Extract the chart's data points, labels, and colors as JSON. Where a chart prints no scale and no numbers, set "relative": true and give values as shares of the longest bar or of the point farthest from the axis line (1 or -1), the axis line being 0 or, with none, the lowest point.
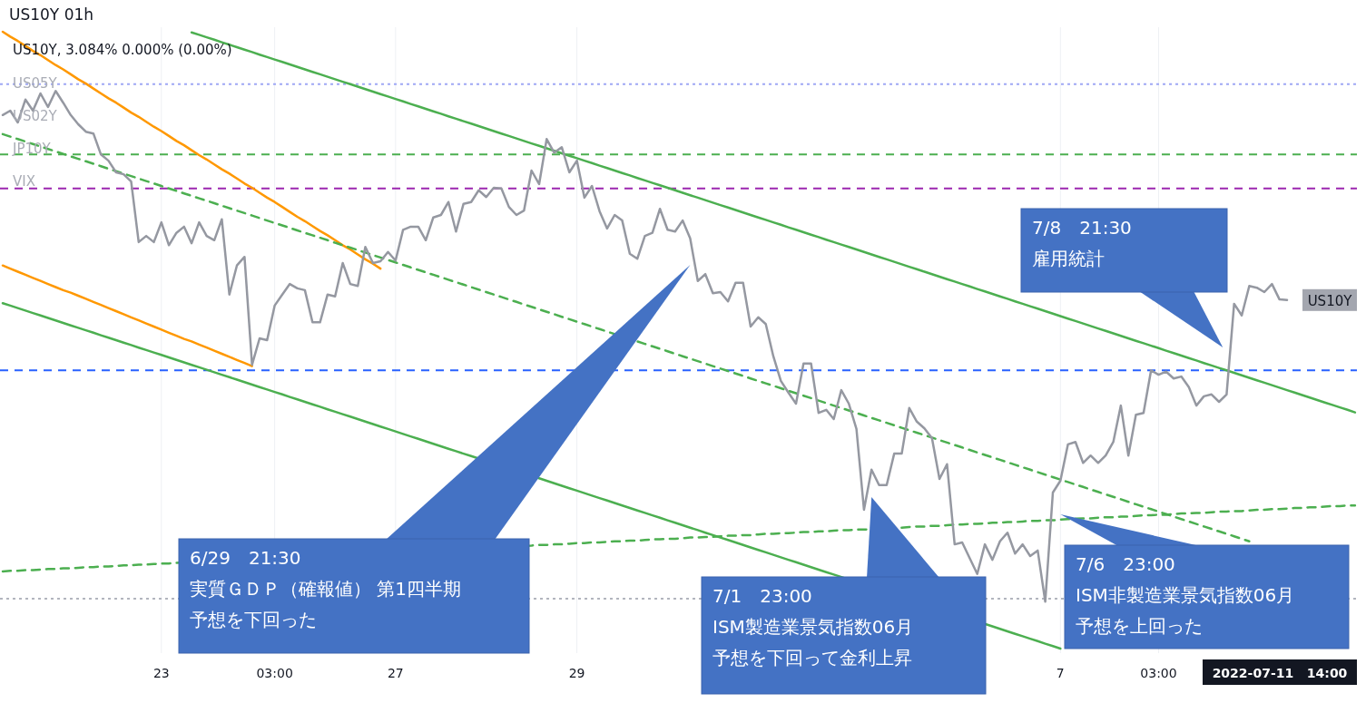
{
  "chart_data": {
    "type": "line",
    "title": "US10Y 01h",
    "subtitle": "US10Y, 3.084% 0.000% (0.00%)",
    "relative": true,
    "grid": "x",
    "categories": [
      null,
      null,
      null,
      null,
      null,
      null,
      null,
      null,
      null,
      null,
      null,
      null,
      null,
      null,
      null,
      null,
      null,
      null,
      null,
      null,
      null,
      "23",
      null,
      null,
      null,
      null,
      null,
      null,
      null,
      null,
      null,
      null,
      null,
      null,
      null,
      null,
      "03:00",
      null,
      null,
      null,
      null,
      null,
      null,
      null,
      null,
      null,
      null,
      null,
      null,
      null,
      null,
      null,
      "27",
      null,
      null,
      null,
      null,
      null,
      null,
      null,
      null,
      null,
      null,
      null,
      null,
      null,
      null,
      null,
      null,
      null,
      null,
      null,
      null,
      null,
      null,
      null,
      "29",
      null,
      null,
      null,
      null,
      null,
      null,
      null,
      null,
      null,
      null,
      null,
      null,
      null,
      null,
      null,
      null,
      null,
      null,
      null,
      null,
      null,
      null,
      null,
      null,
      null,
      null,
      null,
      null,
      null,
      null,
      null,
      null,
      null,
      null,
      null,
      null,
      null,
      null,
      null,
      null,
      null,
      null,
      null,
      null,
      null,
      null,
      null,
      null,
      null,
      null,
      null,
      null,
      null,
      null,
      null,
      null,
      null,
      null,
      null,
      null,
      null,
      null,
      null,
      "7",
      null,
      null,
      null,
      null,
      null,
      null,
      null,
      null,
      null,
      null,
      null,
      null,
      "03:00",
      null,
      null,
      null,
      null,
      null,
      null,
      null,
      null,
      null,
      null,
      null,
      null,
      null,
      null,
      null,
      null,
      null,
      null,
      null,
      null,
      null,
      null,
      null,
      null,
      null,
      null
    ],
    "ref_lines": [
      {
        "axis": "y",
        "value": 0.915,
        "color": "#9fa8f5",
        "line_style": "dotted"
      },
      {
        "axis": "y",
        "value": 0.801,
        "color": "#4caf50",
        "line_style": "dashed"
      },
      {
        "axis": "y",
        "value": 0.746,
        "color": "#9c27b0",
        "line_style": "dashed"
      },
      {
        "axis": "y",
        "value": 0.451,
        "color": "#2962ff",
        "line_style": "dashed"
      },
      {
        "axis": "y",
        "value": 0.081,
        "color": "#b2b5be",
        "line_style": "dotted"
      }
    ],
    "annotations": [
      "US05Y",
      "US02Y",
      "JP10Y",
      "VIX",
      "6/29　21:30",
      "実質ＧＤＰ（確報値） 第1四半期予想を下回った",
      "7/1　23:00",
      "ISM製造業景気指数06月予想を下回って金利上昇",
      "7/6　23:00",
      "ISM非製造業景気指数06月予想を上回った",
      "7/8　21:30",
      "雇用統計",
      "2022-07-11   14:00"
    ],
    "series": [
      {
        "color": "#ff9800",
        "line_style": "solid",
        "values": [
          1.0,
          0.992,
          0.985,
          0.977,
          0.969,
          0.962,
          0.954,
          0.946,
          0.939,
          0.931,
          0.923,
          0.916,
          0.908,
          0.9,
          0.892,
          0.885,
          0.877,
          0.869,
          0.862,
          0.854,
          0.846,
          0.839,
          0.831,
          0.823,
          0.816,
          0.808,
          0.8,
          0.793,
          0.785,
          0.777,
          0.77,
          0.762,
          0.754,
          0.747,
          0.739,
          0.731,
          0.724,
          0.716,
          0.708,
          0.7,
          0.693,
          0.685,
          0.677,
          0.67,
          0.662,
          0.654,
          0.647,
          0.639,
          0.631,
          0.624,
          0.616,
          null,
          null,
          null,
          null,
          null,
          null,
          null,
          null,
          null,
          null,
          null,
          null,
          null,
          null,
          null,
          null,
          null,
          null,
          null,
          null,
          null,
          null,
          null,
          null,
          null,
          null,
          null,
          null,
          null,
          null,
          null,
          null,
          null,
          null,
          null,
          null,
          null,
          null,
          null,
          null,
          null,
          null,
          null,
          null,
          null,
          null,
          null,
          null,
          null,
          null,
          null,
          null,
          null,
          null,
          null,
          null,
          null,
          null,
          null,
          null,
          null,
          null,
          null,
          null,
          null,
          null,
          null,
          null,
          null,
          null,
          null,
          null,
          null,
          null,
          null,
          null,
          null,
          null,
          null,
          null,
          null,
          null,
          null,
          null,
          null,
          null,
          null,
          null,
          null,
          null,
          null,
          null,
          null,
          null,
          null,
          null,
          null,
          null,
          null,
          null,
          null,
          null,
          null,
          null,
          null,
          null,
          null,
          null,
          null,
          null,
          null,
          null,
          null,
          null,
          null,
          null,
          null,
          null,
          null,
          null,
          null,
          null,
          null,
          null,
          null,
          null,
          null,
          null,
          null
        ]
      },
      {
        "color": "#ff9800",
        "line_style": "solid",
        "values": [
          0.621,
          0.616,
          0.611,
          0.606,
          0.601,
          0.596,
          0.591,
          0.586,
          0.581,
          0.577,
          0.572,
          0.567,
          0.562,
          0.557,
          0.552,
          0.547,
          0.542,
          0.537,
          0.532,
          0.527,
          0.522,
          0.517,
          0.512,
          0.507,
          0.502,
          0.498,
          0.493,
          0.488,
          0.483,
          0.478,
          0.473,
          0.468,
          0.463,
          0.458,
          null,
          null,
          null,
          null,
          null,
          null,
          null,
          null,
          null,
          null,
          null,
          null,
          null,
          null,
          null,
          null,
          null,
          null,
          null,
          null,
          null,
          null,
          null,
          null,
          null,
          null,
          null,
          null,
          null,
          null,
          null,
          null,
          null,
          null,
          null,
          null,
          null,
          null,
          null,
          null,
          null,
          null,
          null,
          null,
          null,
          null,
          null,
          null,
          null,
          null,
          null,
          null,
          null,
          null,
          null,
          null,
          null,
          null,
          null,
          null,
          null,
          null,
          null,
          null,
          null,
          null,
          null,
          null,
          null,
          null,
          null,
          null,
          null,
          null,
          null,
          null,
          null,
          null,
          null,
          null,
          null,
          null,
          null,
          null,
          null,
          null,
          null,
          null,
          null,
          null,
          null,
          null,
          null,
          null,
          null,
          null,
          null,
          null,
          null,
          null,
          null,
          null,
          null,
          null,
          null,
          null,
          null,
          null,
          null,
          null,
          null,
          null,
          null,
          null,
          null,
          null,
          null,
          null,
          null,
          null,
          null,
          null,
          null,
          null,
          null,
          null,
          null,
          null,
          null,
          null,
          null,
          null,
          null,
          null,
          null,
          null,
          null,
          null,
          null,
          null,
          null,
          null,
          null,
          null,
          null,
          null
        ]
      },
      {
        "color": "#4caf50",
        "line_style": "solid",
        "values": [
          null,
          null,
          null,
          null,
          null,
          null,
          null,
          null,
          null,
          null,
          null,
          null,
          null,
          null,
          null,
          null,
          null,
          null,
          null,
          null,
          null,
          null,
          null,
          null,
          null,
          0.999,
          0.995,
          0.991,
          0.987,
          0.983,
          0.979,
          0.975,
          0.971,
          0.967,
          0.963,
          0.959,
          0.955,
          0.951,
          0.947,
          0.943,
          0.939,
          0.935,
          0.931,
          0.927,
          0.923,
          0.919,
          0.915,
          0.911,
          0.907,
          0.903,
          0.899,
          0.895,
          0.891,
          0.887,
          0.883,
          0.879,
          0.875,
          0.871,
          0.867,
          0.863,
          0.859,
          0.855,
          0.851,
          0.847,
          0.843,
          0.839,
          0.835,
          0.831,
          0.827,
          0.823,
          0.819,
          0.815,
          0.811,
          0.807,
          0.803,
          0.799,
          0.795,
          0.791,
          0.787,
          0.783,
          0.779,
          0.775,
          0.771,
          0.767,
          0.763,
          0.759,
          0.755,
          0.751,
          0.747,
          0.743,
          0.739,
          0.735,
          0.731,
          0.727,
          0.723,
          0.719,
          0.715,
          0.711,
          0.707,
          0.703,
          0.699,
          0.695,
          0.691,
          0.687,
          0.683,
          0.679,
          0.675,
          0.671,
          0.667,
          0.663,
          0.659,
          0.655,
          0.651,
          0.647,
          0.643,
          0.639,
          0.635,
          0.631,
          0.627,
          0.623,
          0.619,
          0.615,
          0.611,
          0.607,
          0.603,
          0.599,
          0.595,
          0.591,
          0.587,
          0.583,
          0.579,
          0.575,
          0.571,
          0.567,
          0.563,
          0.559,
          0.555,
          0.551,
          0.547,
          0.543,
          0.539,
          0.535,
          0.531,
          0.527,
          0.523,
          0.519,
          0.515,
          0.511,
          0.507,
          0.503,
          0.499,
          0.495,
          0.491,
          0.487,
          0.483,
          0.479,
          0.475,
          0.471,
          0.467,
          0.463,
          0.459,
          0.455,
          0.451,
          0.447,
          0.443,
          0.439,
          0.435,
          0.431,
          0.427,
          0.423,
          0.419,
          0.415,
          0.411,
          0.407,
          0.403,
          0.399,
          0.395,
          0.391,
          0.387,
          0.383
        ]
      },
      {
        "color": "#4caf50",
        "line_style": "solid",
        "values": [
          0.56,
          0.556,
          0.552,
          0.548,
          0.544,
          0.54,
          0.536,
          0.532,
          0.528,
          0.524,
          0.52,
          0.516,
          0.512,
          0.508,
          0.504,
          0.5,
          0.496,
          0.492,
          0.488,
          0.484,
          0.48,
          0.476,
          0.472,
          0.468,
          0.464,
          0.46,
          0.456,
          0.452,
          0.448,
          0.444,
          0.44,
          0.436,
          0.432,
          0.428,
          0.424,
          0.42,
          0.416,
          0.412,
          0.408,
          0.404,
          0.4,
          0.396,
          0.392,
          0.388,
          0.384,
          0.38,
          0.376,
          0.372,
          0.368,
          0.364,
          0.36,
          0.356,
          0.352,
          0.348,
          0.344,
          0.34,
          0.336,
          0.332,
          0.328,
          0.324,
          0.32,
          0.316,
          0.312,
          null,
          null,
          null,
          null,
          null,
          null,
          null,
          null,
          0.276,
          0.272,
          0.268,
          0.264,
          0.26,
          0.256,
          0.252,
          0.248,
          0.244,
          0.24,
          0.236,
          0.232,
          0.228,
          0.224,
          0.22,
          0.216,
          0.212,
          0.208,
          0.204,
          0.2,
          0.196,
          0.192,
          0.188,
          0.184,
          0.18,
          0.176,
          0.172,
          0.168,
          0.164,
          0.16,
          0.156,
          0.152,
          0.148,
          0.144,
          0.14,
          0.136,
          0.132,
          0.128,
          0.124,
          0.12,
          null,
          null,
          null,
          null,
          null,
          null,
          null,
          null,
          null,
          null,
          null,
          null,
          null,
          null,
          null,
          null,
          null,
          null,
          null,
          null,
          0.036,
          0.032,
          0.028,
          0.024,
          0.02,
          0.016,
          0.012,
          0.008,
          0.004,
          0.0,
          null,
          null,
          null,
          null,
          null,
          null,
          null,
          null,
          null,
          null,
          null,
          null,
          null,
          null,
          null,
          null,
          null,
          null,
          null,
          null,
          null,
          null,
          null,
          null,
          null,
          null,
          null,
          null,
          null,
          null,
          null,
          null,
          null,
          null,
          null,
          null,
          null,
          null,
          null
        ]
      },
      {
        "color": "#4caf50",
        "line_style": "dashed",
        "values": [
          0.834,
          0.83,
          0.826,
          0.822,
          0.818,
          0.814,
          0.81,
          0.806,
          0.802,
          0.798,
          0.794,
          0.79,
          0.786,
          0.782,
          0.778,
          0.774,
          0.77,
          0.766,
          0.762,
          0.758,
          0.754,
          0.75,
          0.746,
          0.742,
          0.738,
          0.734,
          0.73,
          0.726,
          0.722,
          0.718,
          0.714,
          0.71,
          0.706,
          0.702,
          0.698,
          0.694,
          0.69,
          0.686,
          0.682,
          0.678,
          0.674,
          0.67,
          0.666,
          0.662,
          0.658,
          0.654,
          0.65,
          0.646,
          0.642,
          0.638,
          0.634,
          0.63,
          0.626,
          0.622,
          0.618,
          0.614,
          0.61,
          0.606,
          0.602,
          0.598,
          0.594,
          0.59,
          0.586,
          0.582,
          0.578,
          0.574,
          0.57,
          0.566,
          0.562,
          0.558,
          0.554,
          0.55,
          0.546,
          0.542,
          0.538,
          0.534,
          0.53,
          0.526,
          0.522,
          0.518,
          0.514,
          null,
          null,
          null,
          0.498,
          0.494,
          0.49,
          0.486,
          0.482,
          0.478,
          0.474,
          0.47,
          0.466,
          0.462,
          0.458,
          0.454,
          0.45,
          0.446,
          0.442,
          0.438,
          0.434,
          0.43,
          0.426,
          0.422,
          0.418,
          0.414,
          0.41,
          0.406,
          0.402,
          0.398,
          0.394,
          0.39,
          0.386,
          0.382,
          0.378,
          0.374,
          0.37,
          0.366,
          0.362,
          0.358,
          0.354,
          0.35,
          0.346,
          0.342,
          0.338,
          0.334,
          0.33,
          0.326,
          0.322,
          0.318,
          0.314,
          0.31,
          0.306,
          0.302,
          0.298,
          0.294,
          0.29,
          0.286,
          0.282,
          0.278,
          0.274,
          0.27,
          0.266,
          0.262,
          0.258,
          0.254,
          0.25,
          0.246,
          0.242,
          0.238,
          0.234,
          0.23,
          0.226,
          0.222,
          0.218,
          0.214,
          0.21,
          0.206,
          0.202,
          0.198,
          0.194,
          0.19,
          0.186,
          0.182,
          0.178,
          0.174,
          null,
          null,
          null,
          null,
          null,
          null,
          null,
          null,
          null,
          null,
          null,
          null,
          null,
          null
        ]
      },
      {
        "color": "#4caf50",
        "line_style": "dashed",
        "values": [
          0.125,
          0.126,
          0.126,
          0.127,
          0.127,
          0.128,
          0.129,
          0.129,
          0.13,
          0.13,
          0.131,
          0.132,
          0.132,
          0.133,
          0.133,
          0.134,
          0.135,
          0.135,
          0.136,
          0.136,
          0.137,
          0.138,
          0.138,
          0.139,
          null,
          null,
          null,
          null,
          null,
          null,
          null,
          null,
          null,
          null,
          null,
          null,
          null,
          null,
          null,
          null,
          null,
          null,
          null,
          null,
          null,
          null,
          null,
          null,
          null,
          null,
          null,
          null,
          null,
          null,
          null,
          null,
          null,
          null,
          null,
          null,
          null,
          null,
          null,
          null,
          null,
          null,
          null,
          null,
          null,
          null,
          0.167,
          0.168,
          0.168,
          0.169,
          0.169,
          0.17,
          0.171,
          0.171,
          0.172,
          0.172,
          0.173,
          0.174,
          0.174,
          0.175,
          0.175,
          0.176,
          0.177,
          0.177,
          0.178,
          0.178,
          0.179,
          0.18,
          0.18,
          0.181,
          0.181,
          0.182,
          0.183,
          0.183,
          0.184,
          0.184,
          0.185,
          0.186,
          0.186,
          0.187,
          0.187,
          0.188,
          0.189,
          0.189,
          0.19,
          0.19,
          0.191,
          0.192,
          0.192,
          0.193,
          0.193,
          null,
          null,
          null,
          null,
          0.196,
          0.197,
          0.198,
          0.198,
          0.199,
          0.199,
          0.2,
          0.201,
          0.201,
          0.202,
          0.202,
          0.203,
          0.204,
          0.204,
          0.205,
          0.205,
          0.206,
          0.207,
          0.207,
          0.208,
          0.208,
          0.209,
          0.21,
          null,
          0.211,
          0.211,
          0.212,
          0.213,
          0.213,
          0.214,
          0.214,
          0.215,
          0.216,
          0.216,
          0.217,
          0.217,
          0.218,
          0.219,
          0.219,
          0.22,
          0.22,
          0.221,
          0.222,
          0.222,
          0.223,
          0.223,
          0.224,
          0.225,
          0.225,
          0.226,
          0.226,
          0.227,
          0.228,
          0.228,
          0.229,
          0.229,
          0.23,
          0.231,
          0.231,
          0.232,
          0.232
        ]
      },
      {
        "name": "US10Y",
        "color": "#9598a1",
        "line_style": "solid",
        "values": [
          0.865,
          0.872,
          0.853,
          0.89,
          0.872,
          0.9,
          0.878,
          0.904,
          0.885,
          0.865,
          0.85,
          0.838,
          0.835,
          0.801,
          0.791,
          0.772,
          0.769,
          0.757,
          0.659,
          0.669,
          0.659,
          0.691,
          0.654,
          0.674,
          0.684,
          0.657,
          0.691,
          0.669,
          0.662,
          0.696,
          0.574,
          0.621,
          0.635,
          0.46,
          0.503,
          0.5,
          0.556,
          0.574,
          0.591,
          0.584,
          0.581,
          0.529,
          0.529,
          0.574,
          0.571,
          0.625,
          0.591,
          0.588,
          0.651,
          0.625,
          0.628,
          0.643,
          0.629,
          0.679,
          0.684,
          0.684,
          0.662,
          0.699,
          0.703,
          0.724,
          0.676,
          0.721,
          0.724,
          0.743,
          0.732,
          0.747,
          0.746,
          0.716,
          0.703,
          0.71,
          0.775,
          0.753,
          0.826,
          0.804,
          0.813,
          0.772,
          0.791,
          0.731,
          0.75,
          0.709,
          0.681,
          0.703,
          0.694,
          0.64,
          0.632,
          0.669,
          0.674,
          0.713,
          0.679,
          0.676,
          0.694,
          0.665,
          0.596,
          0.607,
          0.576,
          0.578,
          0.563,
          0.593,
          0.593,
          0.522,
          0.537,
          0.526,
          0.474,
          0.434,
          0.415,
          0.397,
          0.462,
          0.462,
          0.382,
          0.387,
          0.372,
          0.419,
          0.397,
          0.356,
          0.225,
          0.29,
          0.265,
          0.265,
          0.316,
          0.316,
          0.39,
          0.368,
          0.357,
          0.341,
          0.275,
          0.299,
          0.169,
          0.172,
          null,
          0.121,
          0.169,
          0.144,
          0.174,
          0.188,
          0.154,
          0.169,
          0.15,
          0.159,
          0.076,
          0.253,
          0.272,
          0.331,
          0.335,
          0.301,
          0.313,
          0.301,
          0.313,
          0.335,
          0.394,
          0.313,
          0.379,
          0.382,
          0.451,
          0.444,
          0.449,
          0.438,
          0.441,
          0.424,
          0.394,
          0.409,
          0.412,
          0.4,
          0.412,
          0.559,
          0.54,
          0.588,
          0.585,
          0.578,
          0.591,
          0.566,
          0.565,
          null,
          null,
          null,
          null,
          null,
          null,
          null,
          null,
          null
        ]
      }
    ]
  }
}
